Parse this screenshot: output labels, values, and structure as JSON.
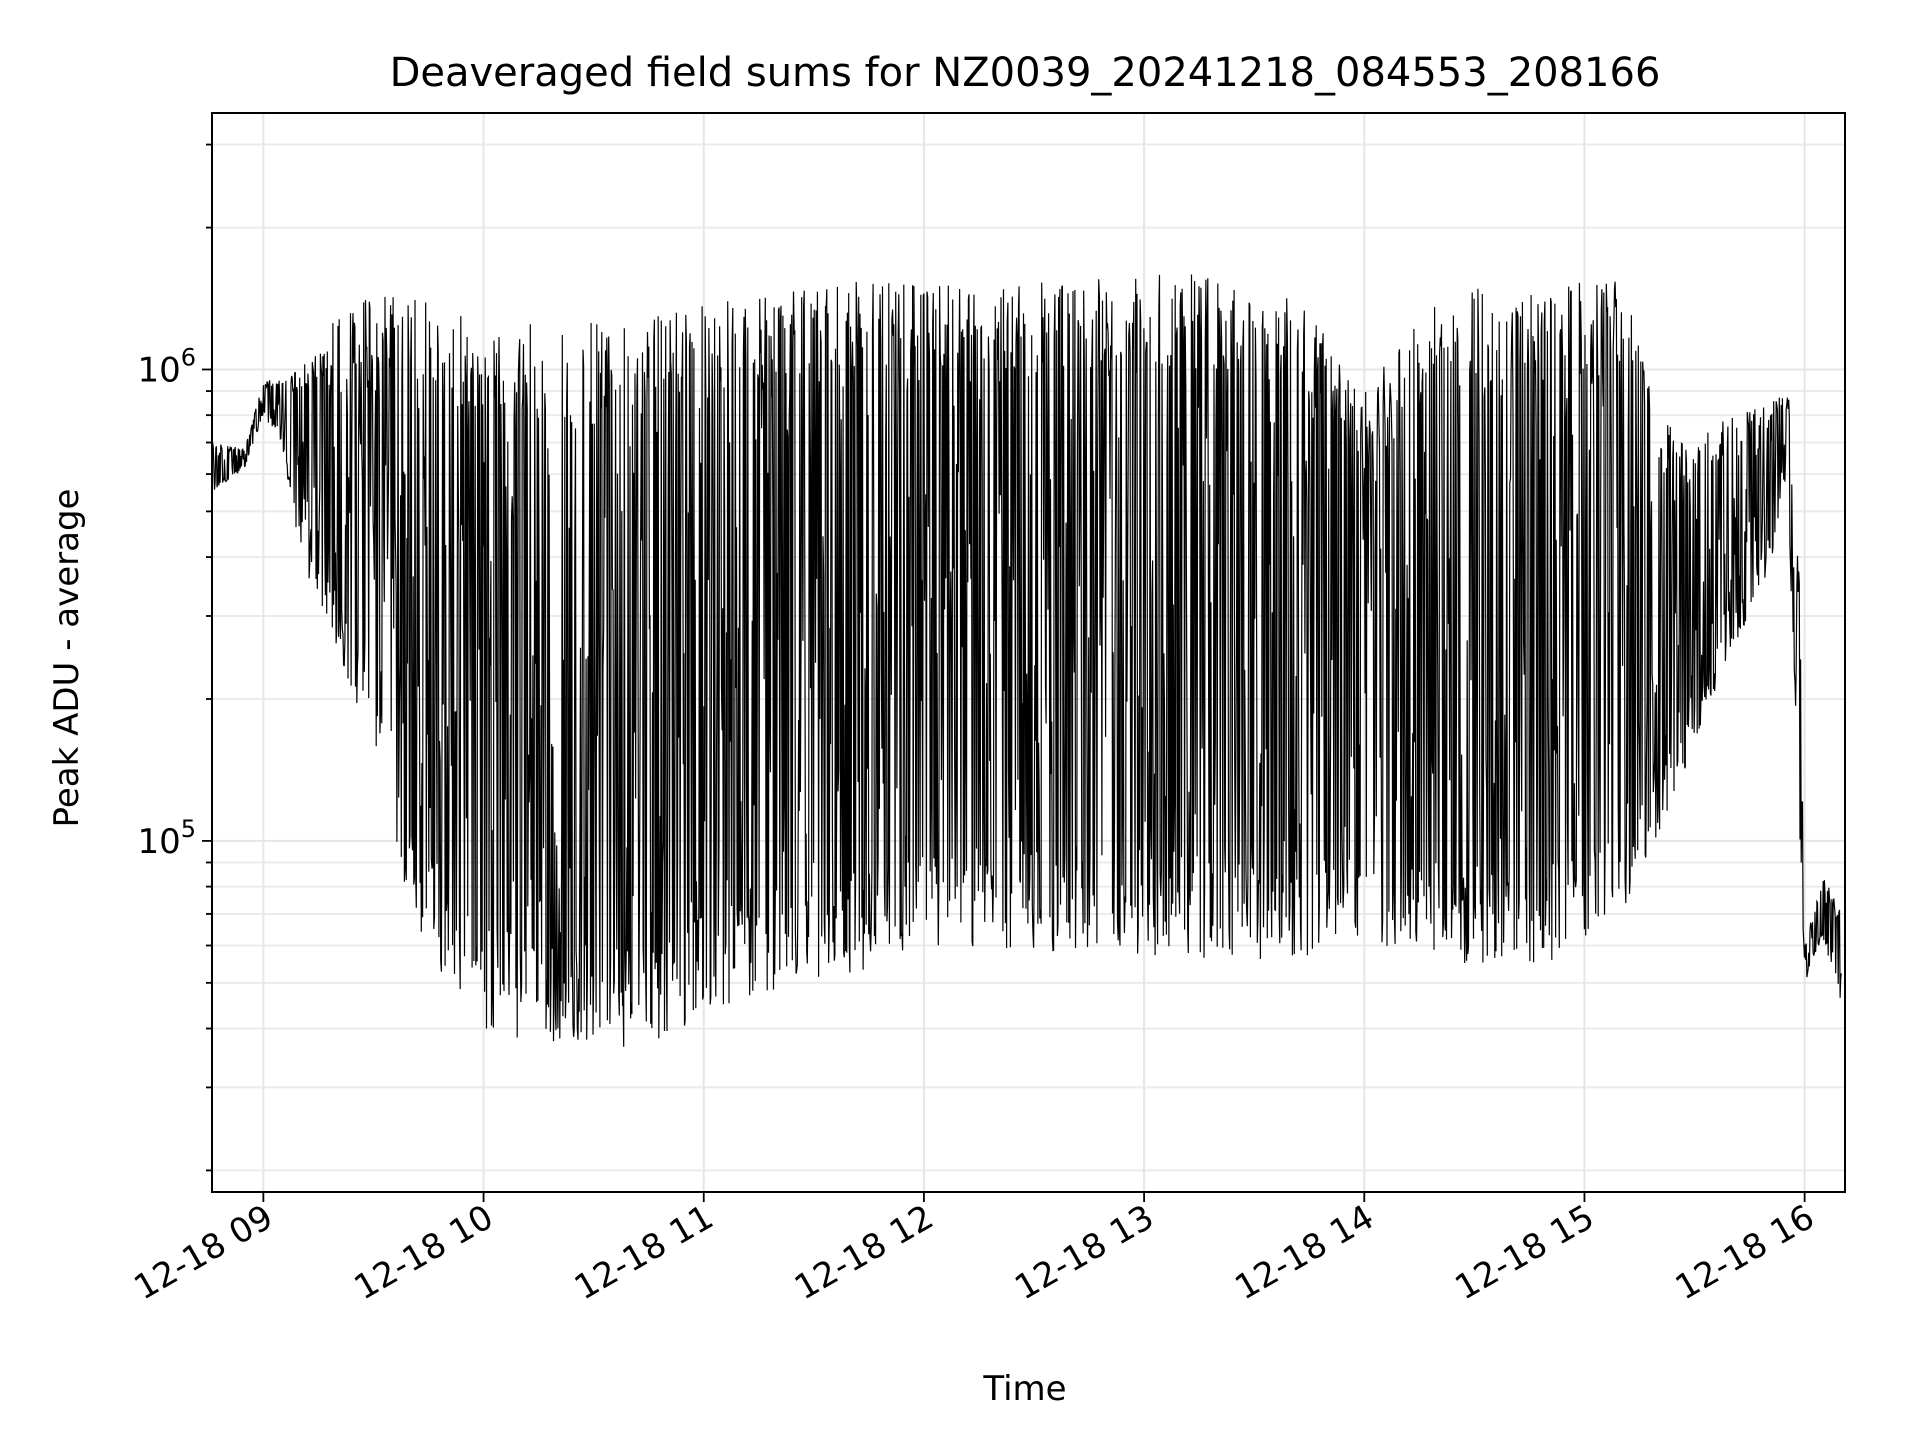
{
  "chart_data": {
    "type": "line",
    "title": "Deaveraged field sums for NZ0039_20241218_084553_208166",
    "xlabel": "Time",
    "ylabel": "Peak ADU - average",
    "yscale": "log",
    "ylim": [
      18000,
      3500000
    ],
    "xlim": [
      "2024-12-18 08:46",
      "2024-12-18 16:11"
    ],
    "grid": true,
    "x_ticks": [
      {
        "value": "2024-12-18 09:00",
        "label": "12-18 09"
      },
      {
        "value": "2024-12-18 10:00",
        "label": "12-18 10"
      },
      {
        "value": "2024-12-18 11:00",
        "label": "12-18 11"
      },
      {
        "value": "2024-12-18 12:00",
        "label": "12-18 12"
      },
      {
        "value": "2024-12-18 13:00",
        "label": "12-18 13"
      },
      {
        "value": "2024-12-18 14:00",
        "label": "12-18 14"
      },
      {
        "value": "2024-12-18 15:00",
        "label": "12-18 15"
      },
      {
        "value": "2024-12-18 16:00",
        "label": "12-18 16"
      }
    ],
    "y_ticks": [
      {
        "value": 100000,
        "base": "10",
        "exp": "5"
      },
      {
        "value": 1000000,
        "base": "10",
        "exp": "6"
      }
    ],
    "line_color": "#000000",
    "series": [
      {
        "envelope": {
          "x": [
            "2024-12-18 08:46",
            "2024-12-18 08:55",
            "2024-12-18 09:00",
            "2024-12-18 09:05",
            "2024-12-18 09:10",
            "2024-12-18 09:20",
            "2024-12-18 09:30",
            "2024-12-18 09:40",
            "2024-12-18 09:50",
            "2024-12-18 10:00",
            "2024-12-18 10:10",
            "2024-12-18 10:20",
            "2024-12-18 10:30",
            "2024-12-18 10:40",
            "2024-12-18 10:50",
            "2024-12-18 11:00",
            "2024-12-18 11:20",
            "2024-12-18 11:40",
            "2024-12-18 12:00",
            "2024-12-18 12:20",
            "2024-12-18 12:40",
            "2024-12-18 13:00",
            "2024-12-18 13:20",
            "2024-12-18 13:40",
            "2024-12-18 14:00",
            "2024-12-18 14:20",
            "2024-12-18 14:40",
            "2024-12-18 15:00",
            "2024-12-18 15:10",
            "2024-12-18 15:20",
            "2024-12-18 15:30",
            "2024-12-18 15:40",
            "2024-12-18 15:50",
            "2024-12-18 15:55",
            "2024-12-18 15:58",
            "2024-12-18 16:00",
            "2024-12-18 16:05",
            "2024-12-18 16:10"
          ],
          "low": [
            550000,
            620000,
            800000,
            700000,
            400000,
            260000,
            150000,
            70000,
            50000,
            40000,
            38000,
            36000,
            35000,
            36000,
            38000,
            42000,
            48000,
            52000,
            58000,
            58000,
            58000,
            57000,
            56000,
            55000,
            62000,
            55000,
            55000,
            56000,
            70000,
            100000,
            160000,
            250000,
            360000,
            600000,
            150000,
            50000,
            62000,
            45000
          ],
          "high": [
            700000,
            680000,
            950000,
            960000,
            1000000,
            1300000,
            1450000,
            1450000,
            1350000,
            1300000,
            1250000,
            1250000,
            1300000,
            1300000,
            1300000,
            1400000,
            1450000,
            1550000,
            1550000,
            1550000,
            1600000,
            1600000,
            1600000,
            1550000,
            900000,
            1500000,
            1500000,
            1600000,
            1600000,
            800000,
            700000,
            800000,
            850000,
            900000,
            800000,
            60000,
            85000,
            70000
          ]
        }
      }
    ]
  }
}
